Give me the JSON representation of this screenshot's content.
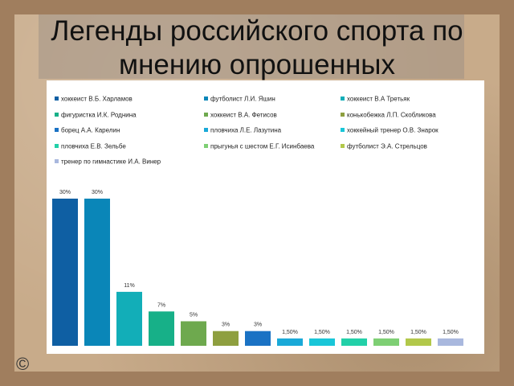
{
  "title": "Легенды российского спорта по мнению опрошенных",
  "copyright_symbol": "©",
  "chart_data": {
    "type": "bar",
    "categories": [
      "хоккеист В.Б. Харламов",
      "футболист Л.И. Яшин",
      "хоккеист В.А Третьяк",
      "фигуристка И.К. Роднина",
      "хоккеист В.А. Фетисов",
      "конькобежка Л.П. Скобликова",
      "борец А.А. Карелин",
      "пловчиха Л.Е. Лазутина",
      "хоккейный тренер О.В. Знарок",
      "пловчиха Е.В. Зельбе",
      "прыгунья с шестом Е.Г. Исинбаева",
      "футболист Э.А. Стрельцов",
      "тренер по гимнастике И.А. Винер"
    ],
    "values": [
      30,
      30,
      11,
      7,
      5,
      3,
      3,
      1.5,
      1.5,
      1.5,
      1.5,
      1.5,
      1.5
    ],
    "value_labels": [
      "30%",
      "30%",
      "11%",
      "7%",
      "5%",
      "3%",
      "3%",
      "1,50%",
      "1,50%",
      "1,50%",
      "1,50%",
      "1,50%",
      "1,50%"
    ],
    "colors": [
      "#0f5fa3",
      "#0a86b8",
      "#12aeb8",
      "#17b088",
      "#6ea94e",
      "#8e9f3f",
      "#1a72c4",
      "#19a9d8",
      "#19c6d8",
      "#22d0a8",
      "#7ecf74",
      "#b2c84a",
      "#a9b8de"
    ],
    "legend_position": "top",
    "grid": false,
    "ylim": [
      0,
      30
    ]
  }
}
